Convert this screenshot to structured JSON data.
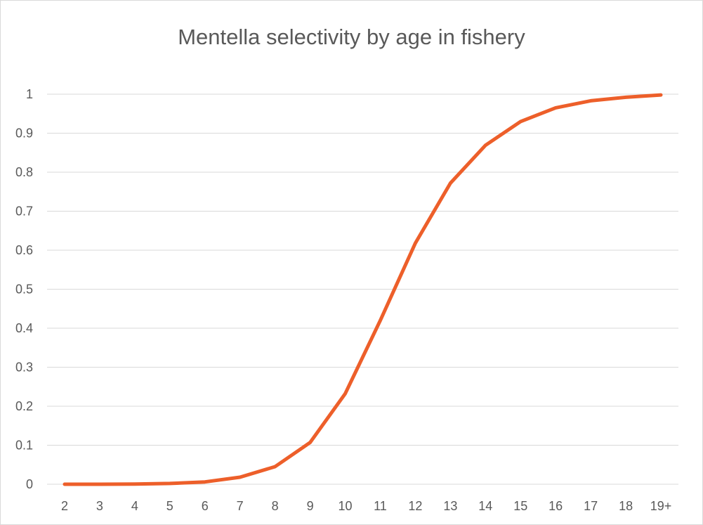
{
  "chart_data": {
    "type": "line",
    "title": "Mentella selectivity by age  in fishery",
    "xlabel": "",
    "ylabel": "",
    "categories": [
      "2",
      "3",
      "4",
      "5",
      "6",
      "7",
      "8",
      "9",
      "10",
      "11",
      "12",
      "13",
      "14",
      "15",
      "16",
      "17",
      "18",
      "19+"
    ],
    "series": [
      {
        "name": "",
        "color": "#ed5f2a",
        "values": [
          0.0,
          0.0,
          0.0005,
          0.002,
          0.006,
          0.018,
          0.045,
          0.107,
          0.232,
          0.42,
          0.618,
          0.772,
          0.869,
          0.93,
          0.965,
          0.983,
          0.992,
          0.998
        ]
      }
    ],
    "ylim": [
      0,
      1
    ],
    "yticks": [
      "0",
      "0.1",
      "0.2",
      "0.3",
      "0.4",
      "0.5",
      "0.6",
      "0.7",
      "0.8",
      "0.9",
      "1"
    ],
    "grid": true,
    "legend": "none",
    "colors": {
      "gridline": "#d9d9d9",
      "text": "#595959"
    }
  }
}
